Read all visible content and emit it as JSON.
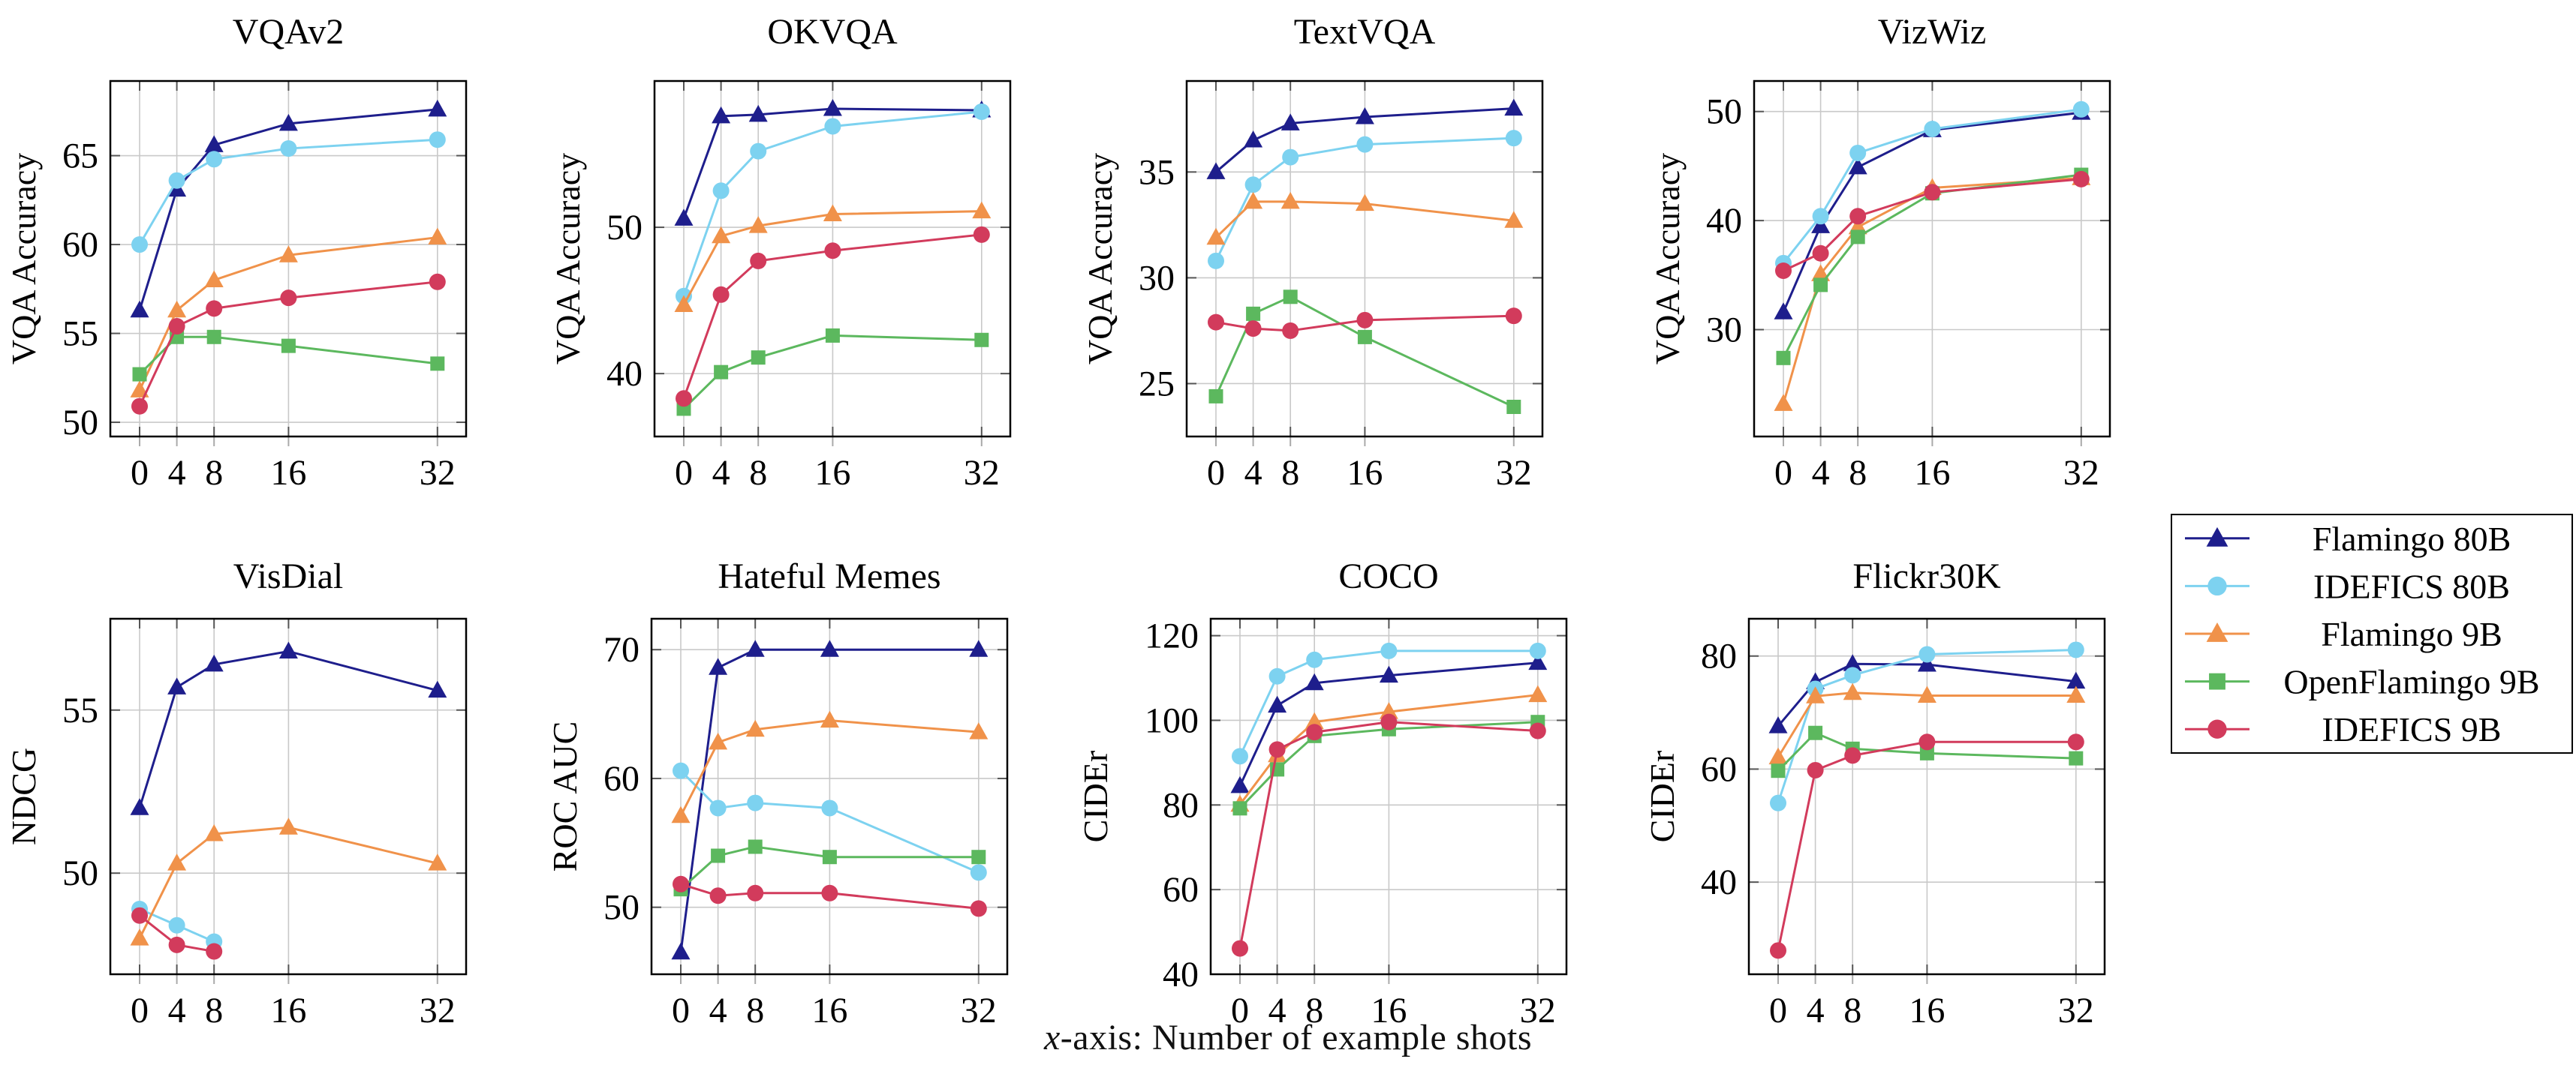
{
  "page": {
    "background": "#ffffff",
    "caption": {
      "prefix": "x",
      "rest": "-axis: Number of example shots"
    }
  },
  "legend": {
    "position": "right-middle",
    "items": [
      {
        "name": "Flamingo 80B",
        "label": "Flamingo 80B",
        "color": "#1e1e8c",
        "marker": "triangle"
      },
      {
        "name": "IDEFICS 80B",
        "label": "IDEFICS 80B",
        "color": "#7dd2f0",
        "marker": "circle"
      },
      {
        "name": "Flamingo 9B",
        "label": "Flamingo 9B",
        "color": "#f0924a",
        "marker": "triangle"
      },
      {
        "name": "OpenFlamingo 9B",
        "label": "OpenFlamingo 9B",
        "color": "#5cb85e",
        "marker": "square"
      },
      {
        "name": "IDEFICS 9B",
        "label": "IDEFICS 9B",
        "color": "#d23b5c",
        "marker": "circle"
      }
    ]
  },
  "axis": {
    "x_ticks": [
      0,
      4,
      8,
      16,
      32
    ],
    "grid": true
  },
  "chart_data": [
    {
      "type": "line",
      "title": "VQAv2",
      "xlabel": "",
      "ylabel": "VQA Accuracy",
      "y_ticks": [
        50,
        55,
        60,
        65
      ],
      "ylim": [
        49.2,
        69.2
      ],
      "series": [
        {
          "name": "Flamingo 80B",
          "x": [
            0,
            4,
            8,
            16,
            32
          ],
          "values": [
            56.3,
            63.1,
            65.6,
            66.8,
            67.6
          ]
        },
        {
          "name": "IDEFICS 80B",
          "x": [
            0,
            4,
            8,
            16,
            32
          ],
          "values": [
            60.0,
            63.6,
            64.8,
            65.4,
            65.9
          ]
        },
        {
          "name": "Flamingo 9B",
          "x": [
            0,
            4,
            8,
            16,
            32
          ],
          "values": [
            51.8,
            56.3,
            58.0,
            59.4,
            60.4
          ]
        },
        {
          "name": "OpenFlamingo 9B",
          "x": [
            0,
            4,
            8,
            16,
            32
          ],
          "values": [
            52.7,
            54.8,
            54.8,
            54.3,
            53.3
          ]
        },
        {
          "name": "IDEFICS 9B",
          "x": [
            0,
            4,
            8,
            16,
            32
          ],
          "values": [
            50.9,
            55.4,
            56.4,
            57.0,
            57.9
          ]
        }
      ]
    },
    {
      "type": "line",
      "title": "OKVQA",
      "xlabel": "",
      "ylabel": "VQA Accuracy",
      "y_ticks": [
        40,
        50
      ],
      "ylim": [
        35.7,
        60.0
      ],
      "series": [
        {
          "name": "Flamingo 80B",
          "x": [
            0,
            4,
            8,
            16,
            32
          ],
          "values": [
            50.6,
            57.6,
            57.7,
            58.1,
            58.0
          ]
        },
        {
          "name": "IDEFICS 80B",
          "x": [
            0,
            4,
            8,
            16,
            32
          ],
          "values": [
            45.3,
            52.5,
            55.2,
            56.9,
            57.9
          ]
        },
        {
          "name": "Flamingo 9B",
          "x": [
            0,
            4,
            8,
            16,
            32
          ],
          "values": [
            44.7,
            49.4,
            50.1,
            50.9,
            51.1
          ]
        },
        {
          "name": "OpenFlamingo 9B",
          "x": [
            0,
            4,
            8,
            16,
            32
          ],
          "values": [
            37.6,
            40.1,
            41.1,
            42.6,
            42.3
          ]
        },
        {
          "name": "IDEFICS 9B",
          "x": [
            0,
            4,
            8,
            16,
            32
          ],
          "values": [
            38.3,
            45.4,
            47.7,
            48.4,
            49.5
          ]
        }
      ]
    },
    {
      "type": "line",
      "title": "TextVQA",
      "xlabel": "",
      "ylabel": "VQA Accuracy",
      "y_ticks": [
        25,
        30,
        35
      ],
      "ylim": [
        22.5,
        39.3
      ],
      "series": [
        {
          "name": "Flamingo 80B",
          "x": [
            0,
            4,
            8,
            16,
            32
          ],
          "values": [
            35.0,
            36.5,
            37.3,
            37.6,
            38.0
          ]
        },
        {
          "name": "IDEFICS 80B",
          "x": [
            0,
            4,
            8,
            16,
            32
          ],
          "values": [
            30.8,
            34.4,
            35.7,
            36.3,
            36.6
          ]
        },
        {
          "name": "Flamingo 9B",
          "x": [
            0,
            4,
            8,
            16,
            32
          ],
          "values": [
            31.9,
            33.6,
            33.6,
            33.5,
            32.7
          ]
        },
        {
          "name": "OpenFlamingo 9B",
          "x": [
            0,
            4,
            8,
            16,
            32
          ],
          "values": [
            24.4,
            28.3,
            29.1,
            27.2,
            23.9
          ]
        },
        {
          "name": "IDEFICS 9B",
          "x": [
            0,
            4,
            8,
            16,
            32
          ],
          "values": [
            27.9,
            27.6,
            27.5,
            28.0,
            28.2
          ]
        }
      ]
    },
    {
      "type": "line",
      "title": "VizWiz",
      "xlabel": "",
      "ylabel": "VQA Accuracy",
      "y_ticks": [
        30,
        40,
        50
      ],
      "ylim": [
        20.2,
        52.8
      ],
      "series": [
        {
          "name": "Flamingo 80B",
          "x": [
            0,
            4,
            8,
            16,
            32
          ],
          "values": [
            31.6,
            39.5,
            44.9,
            48.3,
            49.9
          ]
        },
        {
          "name": "IDEFICS 80B",
          "x": [
            0,
            4,
            8,
            16,
            32
          ],
          "values": [
            36.1,
            40.4,
            46.2,
            48.4,
            50.2
          ]
        },
        {
          "name": "Flamingo 9B",
          "x": [
            0,
            4,
            8,
            16,
            32
          ],
          "values": [
            23.2,
            35.1,
            39.4,
            43.0,
            43.9
          ]
        },
        {
          "name": "OpenFlamingo 9B",
          "x": [
            0,
            4,
            8,
            16,
            32
          ],
          "values": [
            27.4,
            34.1,
            38.5,
            42.5,
            44.2
          ]
        },
        {
          "name": "IDEFICS 9B",
          "x": [
            0,
            4,
            8,
            16,
            32
          ],
          "values": [
            35.4,
            37.0,
            40.4,
            42.6,
            43.8
          ]
        }
      ]
    },
    {
      "type": "line",
      "title": "VisDial",
      "xlabel": "",
      "ylabel": "NDCG",
      "y_ticks": [
        50,
        55
      ],
      "ylim": [
        46.9,
        57.8
      ],
      "series": [
        {
          "name": "Flamingo 80B",
          "x": [
            0,
            4,
            8,
            16,
            32
          ],
          "values": [
            52.0,
            55.7,
            56.4,
            56.8,
            55.6
          ]
        },
        {
          "name": "IDEFICS 80B",
          "x": [
            0,
            4,
            8
          ],
          "values": [
            48.9,
            48.4,
            47.9
          ]
        },
        {
          "name": "Flamingo 9B",
          "x": [
            0,
            4,
            8,
            16,
            32
          ],
          "values": [
            48.0,
            50.3,
            51.2,
            51.4,
            50.3
          ]
        },
        {
          "name": "IDEFICS 9B",
          "x": [
            0,
            4,
            8
          ],
          "values": [
            48.7,
            47.8,
            47.6
          ]
        }
      ]
    },
    {
      "type": "line",
      "title": "Hateful Memes",
      "xlabel": "",
      "ylabel": "ROC AUC",
      "y_ticks": [
        50,
        60,
        70
      ],
      "ylim": [
        44.8,
        72.4
      ],
      "series": [
        {
          "name": "Flamingo 80B",
          "x": [
            0,
            4,
            8,
            16,
            32
          ],
          "values": [
            46.5,
            68.6,
            70.0,
            70.0,
            70.0
          ]
        },
        {
          "name": "IDEFICS 80B",
          "x": [
            0,
            4,
            8,
            16,
            32
          ],
          "values": [
            60.6,
            57.7,
            58.1,
            57.7,
            52.7
          ]
        },
        {
          "name": "Flamingo 9B",
          "x": [
            0,
            4,
            8,
            16,
            32
          ],
          "values": [
            57.1,
            62.8,
            63.8,
            64.5,
            63.6
          ]
        },
        {
          "name": "OpenFlamingo 9B",
          "x": [
            0,
            4,
            8,
            16,
            32
          ],
          "values": [
            51.4,
            54.0,
            54.7,
            53.9,
            53.9
          ]
        },
        {
          "name": "IDEFICS 9B",
          "x": [
            0,
            4,
            8,
            16,
            32
          ],
          "values": [
            51.8,
            50.9,
            51.1,
            51.1,
            49.9
          ]
        }
      ]
    },
    {
      "type": "line",
      "title": "COCO",
      "xlabel": "",
      "ylabel": "CIDEr",
      "y_ticks": [
        40,
        60,
        80,
        100,
        120
      ],
      "ylim": [
        40.0,
        124.0
      ],
      "series": [
        {
          "name": "Flamingo 80B",
          "x": [
            0,
            4,
            8,
            16,
            32
          ],
          "values": [
            84.5,
            103.5,
            108.8,
            110.6,
            113.6
          ]
        },
        {
          "name": "IDEFICS 80B",
          "x": [
            0,
            4,
            8,
            16,
            32
          ],
          "values": [
            91.5,
            110.4,
            114.3,
            116.4,
            116.4
          ]
        },
        {
          "name": "Flamingo 9B",
          "x": [
            0,
            4,
            8,
            16,
            32
          ],
          "values": [
            80.1,
            91.8,
            99.6,
            102.0,
            106.0
          ]
        },
        {
          "name": "OpenFlamingo 9B",
          "x": [
            0,
            4,
            8,
            16,
            32
          ],
          "values": [
            79.2,
            88.4,
            96.3,
            97.9,
            99.6
          ]
        },
        {
          "name": "IDEFICS 9B",
          "x": [
            0,
            4,
            8,
            16,
            32
          ],
          "values": [
            46.1,
            93.1,
            97.2,
            99.6,
            97.5
          ]
        }
      ]
    },
    {
      "type": "line",
      "title": "Flickr30K",
      "xlabel": "",
      "ylabel": "CIDEr",
      "y_ticks": [
        40,
        60,
        80
      ],
      "ylim": [
        23.7,
        86.6
      ],
      "series": [
        {
          "name": "Flamingo 80B",
          "x": [
            0,
            4,
            8,
            16,
            32
          ],
          "values": [
            67.6,
            75.4,
            78.6,
            78.5,
            75.5
          ]
        },
        {
          "name": "IDEFICS 80B",
          "x": [
            0,
            4,
            8,
            16,
            32
          ],
          "values": [
            54.0,
            74.2,
            76.6,
            80.3,
            81.1
          ]
        },
        {
          "name": "Flamingo 9B",
          "x": [
            0,
            4,
            8,
            16,
            32
          ],
          "values": [
            62.1,
            72.9,
            73.5,
            73.0,
            73.0
          ]
        },
        {
          "name": "OpenFlamingo 9B",
          "x": [
            0,
            4,
            8,
            16,
            32
          ],
          "values": [
            59.7,
            66.4,
            63.6,
            62.8,
            61.9
          ]
        },
        {
          "name": "IDEFICS 9B",
          "x": [
            0,
            4,
            8,
            16,
            32
          ],
          "values": [
            27.9,
            59.8,
            62.4,
            64.8,
            64.8
          ]
        }
      ]
    }
  ]
}
